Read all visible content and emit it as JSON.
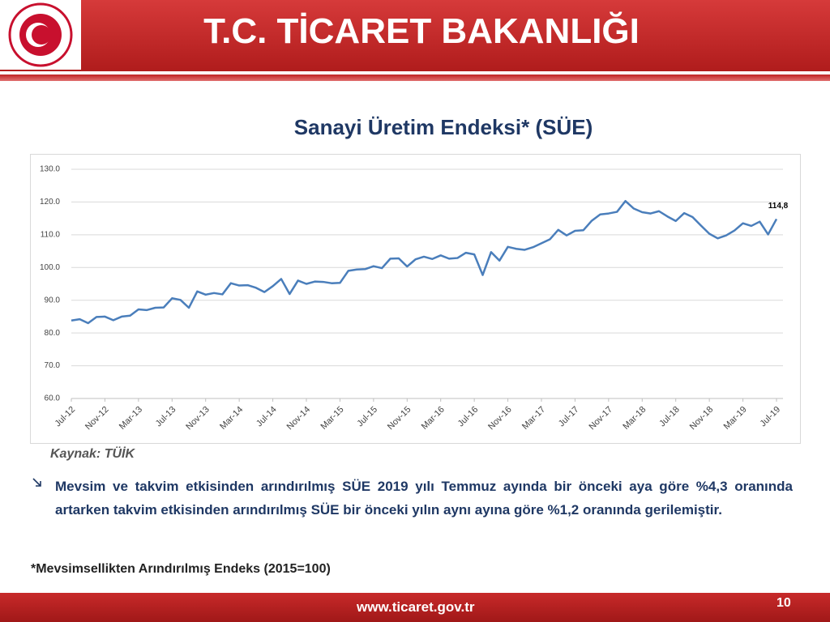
{
  "header": {
    "title": "T.C. TİCARET BAKANLIĞI"
  },
  "chart_data": {
    "type": "line",
    "title": "Sanayi Üretim Endeksi* (SÜE)",
    "color": "#4a7ebb",
    "grid": true,
    "categories": [
      "Jul-12",
      null,
      null,
      null,
      "Nov-12",
      null,
      null,
      null,
      "Mar-13",
      null,
      null,
      null,
      "Jul-13",
      null,
      null,
      null,
      "Nov-13",
      null,
      null,
      null,
      "Mar-14",
      null,
      null,
      null,
      "Jul-14",
      null,
      null,
      null,
      "Nov-14",
      null,
      null,
      null,
      "Mar-15",
      null,
      null,
      null,
      "Jul-15",
      null,
      null,
      null,
      "Nov-15",
      null,
      null,
      null,
      "Mar-16",
      null,
      null,
      null,
      "Jul-16",
      null,
      null,
      null,
      "Nov-16",
      null,
      null,
      null,
      "Mar-17",
      null,
      null,
      null,
      "Jul-17",
      null,
      null,
      null,
      "Nov-17",
      null,
      null,
      null,
      "Mar-18",
      null,
      null,
      null,
      "Jul-18",
      null,
      null,
      null,
      "Nov-18",
      null,
      null,
      null,
      "Mar-19",
      null,
      null,
      null,
      "Jul-19"
    ],
    "values": [
      83.8,
      84.2,
      83.0,
      84.9,
      85.0,
      83.9,
      85.0,
      85.3,
      87.2,
      87.0,
      87.7,
      87.8,
      90.6,
      90.1,
      87.7,
      92.7,
      91.7,
      92.2,
      91.8,
      95.2,
      94.5,
      94.6,
      93.8,
      92.5,
      94.3,
      96.5,
      91.9,
      96.0,
      95.0,
      95.7,
      95.6,
      95.2,
      95.3,
      99.0,
      99.4,
      99.5,
      100.4,
      99.8,
      102.7,
      102.8,
      100.3,
      102.5,
      103.3,
      102.6,
      103.7,
      102.7,
      102.9,
      104.5,
      104.0,
      97.7,
      104.7,
      102.1,
      106.3,
      105.7,
      105.4,
      106.2,
      107.4,
      108.6,
      111.5,
      109.8,
      111.2,
      111.4,
      114.3,
      116.2,
      116.5,
      117.0,
      120.3,
      118.0,
      116.9,
      116.5,
      117.2,
      115.6,
      114.2,
      116.6,
      115.4,
      112.8,
      110.3,
      108.9,
      109.8,
      111.3,
      113.5,
      112.7,
      114.0,
      110.1,
      114.8
    ],
    "value_labels": [
      null,
      null,
      null,
      null,
      null,
      null,
      null,
      null,
      null,
      null,
      null,
      null,
      null,
      null,
      null,
      null,
      null,
      null,
      null,
      null,
      null,
      null,
      null,
      null,
      null,
      null,
      null,
      null,
      null,
      null,
      null,
      null,
      null,
      null,
      null,
      null,
      null,
      null,
      null,
      null,
      null,
      null,
      null,
      null,
      null,
      null,
      null,
      null,
      null,
      null,
      null,
      null,
      null,
      null,
      null,
      null,
      null,
      null,
      null,
      null,
      null,
      null,
      null,
      null,
      null,
      null,
      null,
      null,
      null,
      null,
      null,
      null,
      null,
      null,
      null,
      null,
      null,
      null,
      null,
      null,
      null,
      null,
      null,
      null,
      "114,8"
    ],
    "ylim": [
      60,
      130
    ],
    "yticks": [
      {
        "value": 60,
        "label": "60.0"
      },
      {
        "value": 70,
        "label": "70.0"
      },
      {
        "value": 80,
        "label": "80.0"
      },
      {
        "value": 90,
        "label": "90.0"
      },
      {
        "value": 100,
        "label": "100.0"
      },
      {
        "value": 110,
        "label": "110.0"
      },
      {
        "value": 120,
        "label": "120.0"
      },
      {
        "value": 130,
        "label": "130.0"
      }
    ]
  },
  "source": "Kaynak: TÜİK",
  "bullet": "Mevsim ve takvim etkisinden arındırılmış SÜE 2019 yılı Temmuz ayında bir önceki aya göre %4,3 oranında artarken takvim etkisinden arındırılmış SÜE bir önceki yılın aynı ayına göre %1,2 oranında gerilemiştir.",
  "footnote": "*Mevsimsellikten Arındırılmış Endeks (2015=100)",
  "footer": {
    "url": "www.ticaret.gov.tr",
    "page": "10"
  }
}
